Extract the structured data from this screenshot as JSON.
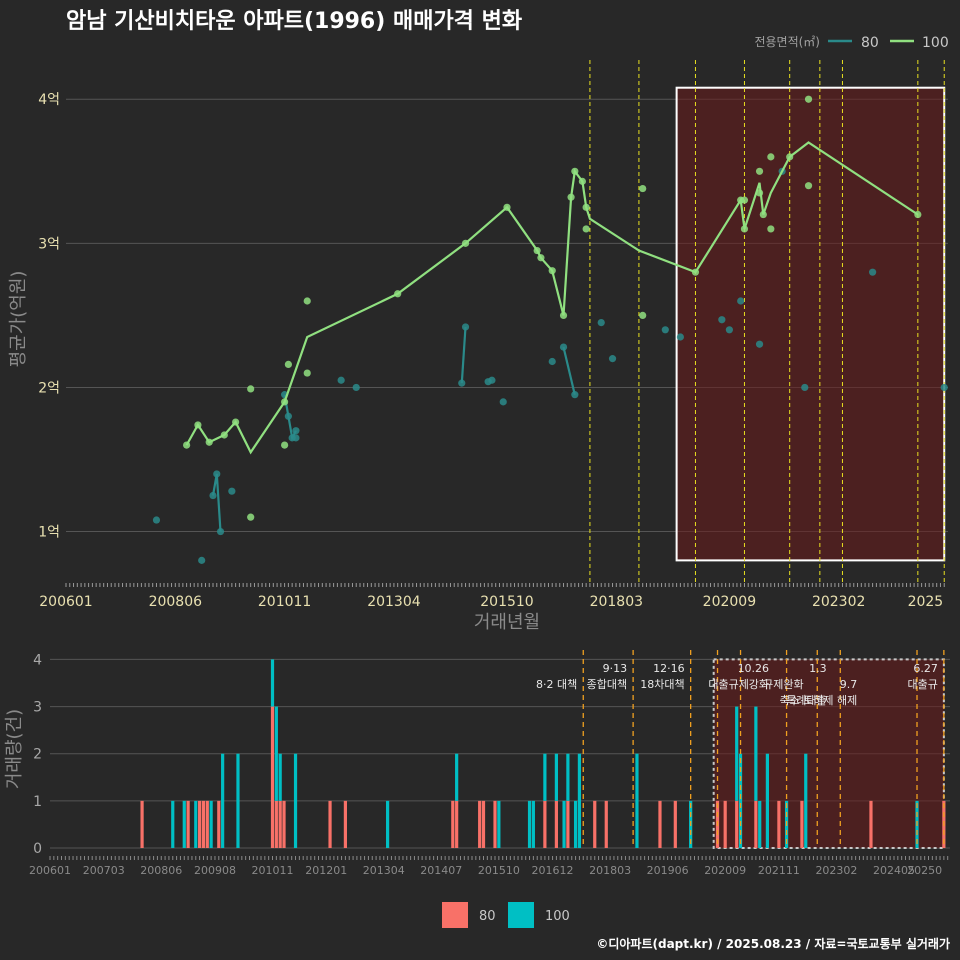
{
  "colors": {
    "background": "#282828",
    "grid": "#555555",
    "series_80": "#2a8a8a",
    "series_100": "#90e080",
    "bar_80": "#f87168",
    "bar_100": "#00bfc4",
    "policy_line_top": "#e8e020",
    "policy_line_bottom": "#f0a020",
    "highlight_fill": "#6a1a1a",
    "highlight_border": "#ffffff"
  },
  "chart_data": [
    {
      "type": "line",
      "title": "암남 기산비치타운 아파트(1996) 매매가격 변화",
      "xlabel": "거래년월",
      "ylabel": "평균가(억원)",
      "legend_title": "전용면적(㎡)",
      "legend_position": "top-right",
      "ylim": [
        0.65,
        4.3
      ],
      "xlim": [
        "2006-01",
        "2025-06"
      ],
      "x_ticks": [
        "200601",
        "200806",
        "201011",
        "201304",
        "201510",
        "201803",
        "202009",
        "202302",
        "2025"
      ],
      "y_ticks": [
        {
          "value": 1,
          "label": "1억"
        },
        {
          "value": 2,
          "label": "2억"
        },
        {
          "value": 3,
          "label": "3억"
        },
        {
          "value": 4,
          "label": "4억"
        }
      ],
      "grid": true,
      "highlight_range": [
        "2019-07",
        "2025-06"
      ],
      "policy_lines": [
        "2017-08",
        "2018-09",
        "2019-12",
        "2021-01",
        "2022-01",
        "2022-09",
        "2023-03",
        "2024-11",
        "2025-06"
      ],
      "series": [
        {
          "name": "80",
          "line_segments": [
            [
              [
                "2009-04",
                1.25
              ],
              [
                "2009-05",
                1.4
              ],
              [
                "2009-06",
                1.0
              ]
            ],
            [
              [
                "2010-11",
                1.95
              ],
              [
                "2010-12",
                1.8
              ],
              [
                "2011-01",
                1.65
              ],
              [
                "2011-02",
                1.7
              ]
            ],
            [
              [
                "2014-10",
                2.03
              ],
              [
                "2014-11",
                2.42
              ]
            ],
            [
              [
                "2017-01",
                2.28
              ],
              [
                "2017-04",
                1.95
              ]
            ]
          ],
          "points": [
            [
              "2008-01",
              1.08
            ],
            [
              "2009-01",
              0.8
            ],
            [
              "2009-04",
              1.25
            ],
            [
              "2009-05",
              1.4
            ],
            [
              "2009-06",
              1.0
            ],
            [
              "2009-09",
              1.28
            ],
            [
              "2010-11",
              1.95
            ],
            [
              "2010-12",
              1.8
            ],
            [
              "2011-01",
              1.65
            ],
            [
              "2011-02",
              1.7
            ],
            [
              "2011-02",
              1.65
            ],
            [
              "2012-02",
              2.05
            ],
            [
              "2012-06",
              2.0
            ],
            [
              "2014-10",
              2.03
            ],
            [
              "2014-11",
              2.42
            ],
            [
              "2015-05",
              2.04
            ],
            [
              "2015-06",
              2.05
            ],
            [
              "2015-09",
              1.9
            ],
            [
              "2016-10",
              2.18
            ],
            [
              "2017-01",
              2.28
            ],
            [
              "2017-04",
              1.95
            ],
            [
              "2017-11",
              2.45
            ],
            [
              "2018-02",
              2.2
            ],
            [
              "2019-04",
              2.4
            ],
            [
              "2019-08",
              2.35
            ],
            [
              "2020-07",
              2.47
            ],
            [
              "2020-09",
              2.4
            ],
            [
              "2020-12",
              2.6
            ],
            [
              "2021-05",
              2.3
            ],
            [
              "2021-11",
              3.5
            ],
            [
              "2022-05",
              2.0
            ],
            [
              "2023-11",
              2.8
            ],
            [
              "2025-06",
              2.0
            ]
          ]
        },
        {
          "name": "100",
          "line_segments": [
            [
              [
                "2008-09",
                1.6
              ],
              [
                "2008-12",
                1.74
              ],
              [
                "2009-03",
                1.62
              ],
              [
                "2009-07",
                1.67
              ],
              [
                "2009-10",
                1.76
              ],
              [
                "2010-02",
                1.55
              ],
              [
                "2010-11",
                1.9
              ],
              [
                "2011-05",
                2.35
              ],
              [
                "2013-05",
                2.65
              ],
              [
                "2014-11",
                3.0
              ],
              [
                "2015-10",
                3.25
              ],
              [
                "2016-06",
                2.95
              ],
              [
                "2016-07",
                2.9
              ],
              [
                "2016-10",
                2.81
              ],
              [
                "2017-01",
                2.5
              ],
              [
                "2017-03",
                3.32
              ],
              [
                "2017-04",
                3.5
              ],
              [
                "2017-06",
                3.43
              ],
              [
                "2017-07",
                3.25
              ],
              [
                "2017-08",
                3.17
              ],
              [
                "2018-09",
                2.95
              ],
              [
                "2019-12",
                2.8
              ],
              [
                "2020-12",
                3.3
              ],
              [
                "2021-01",
                3.1
              ],
              [
                "2021-05",
                3.42
              ],
              [
                "2021-06",
                3.2
              ],
              [
                "2021-08",
                3.35
              ],
              [
                "2022-01",
                3.6
              ],
              [
                "2022-06",
                3.7
              ],
              [
                "2024-11",
                3.2
              ]
            ]
          ],
          "points": [
            [
              "2008-09",
              1.6
            ],
            [
              "2008-12",
              1.74
            ],
            [
              "2009-03",
              1.62
            ],
            [
              "2009-07",
              1.67
            ],
            [
              "2009-10",
              1.76
            ],
            [
              "2010-02",
              1.1
            ],
            [
              "2010-02",
              1.99
            ],
            [
              "2010-11",
              1.6
            ],
            [
              "2010-11",
              1.9
            ],
            [
              "2010-12",
              2.16
            ],
            [
              "2011-05",
              2.1
            ],
            [
              "2011-05",
              2.6
            ],
            [
              "2013-05",
              2.65
            ],
            [
              "2014-11",
              3.0
            ],
            [
              "2015-10",
              3.25
            ],
            [
              "2016-06",
              2.95
            ],
            [
              "2016-07",
              2.9
            ],
            [
              "2016-10",
              2.81
            ],
            [
              "2017-01",
              2.5
            ],
            [
              "2017-03",
              3.32
            ],
            [
              "2017-04",
              3.5
            ],
            [
              "2017-06",
              3.43
            ],
            [
              "2017-07",
              3.25
            ],
            [
              "2017-07",
              3.1
            ],
            [
              "2018-10",
              3.38
            ],
            [
              "2018-10",
              2.5
            ],
            [
              "2019-12",
              2.8
            ],
            [
              "2020-12",
              3.3
            ],
            [
              "2021-01",
              3.3
            ],
            [
              "2021-01",
              3.1
            ],
            [
              "2021-05",
              3.5
            ],
            [
              "2021-05",
              3.35
            ],
            [
              "2021-06",
              3.2
            ],
            [
              "2021-08",
              3.1
            ],
            [
              "2021-08",
              3.6
            ],
            [
              "2022-01",
              3.6
            ],
            [
              "2022-06",
              4.0
            ],
            [
              "2022-06",
              3.4
            ],
            [
              "2024-11",
              3.2
            ]
          ]
        }
      ]
    },
    {
      "type": "bar",
      "xlabel": "",
      "ylabel": "거래량(건)",
      "legend_position": "bottom",
      "legend_entries": [
        "80",
        "100"
      ],
      "ylim": [
        0,
        4.2
      ],
      "y_ticks": [
        0,
        1,
        2,
        3,
        4
      ],
      "x_ticks": [
        "200601",
        "200703",
        "200806",
        "200908",
        "201011",
        "201201",
        "201304",
        "201407",
        "201510",
        "201612",
        "201803",
        "201906",
        "202009",
        "202111",
        "202302",
        "202405",
        "20250"
      ],
      "highlight_range": [
        "2020-06",
        "2025-06"
      ],
      "events": [
        {
          "date": "2017-08",
          "label": "8·2 대책",
          "row": 1
        },
        {
          "date": "2018-09",
          "label": "9·13",
          "row": 0
        },
        {
          "date": "2018-09",
          "label": "종합대책",
          "row": 1
        },
        {
          "date": "2019-12",
          "label": "12·16",
          "row": 0
        },
        {
          "date": "2019-12",
          "label": "18차대책",
          "row": 1
        },
        {
          "date": "2021-10",
          "label": "10.26",
          "row": 0
        },
        {
          "date": "2021-10",
          "label": "대출규제강화",
          "row": 1
        },
        {
          "date": "2023-01",
          "label": "1.3",
          "row": 0
        },
        {
          "date": "2022-07",
          "label": "규제완화",
          "row": 1
        },
        {
          "date": "2023-01",
          "label": "특례대출",
          "row": 2
        },
        {
          "date": "2023-09",
          "label": "9.7",
          "row": 1
        },
        {
          "date": "2023-09",
          "label": "축소 토허제 해제",
          "row": 2
        },
        {
          "date": "2025-06",
          "label": "6.27",
          "row": 0
        },
        {
          "date": "2025-06",
          "label": "대출규",
          "row": 1
        }
      ],
      "policy_lines": [
        "2017-08",
        "2018-09",
        "2019-12",
        "2020-07",
        "2021-01",
        "2022-01",
        "2022-09",
        "2023-03",
        "2024-11",
        "2025-06"
      ],
      "series": [
        {
          "name": "80",
          "bars": [
            [
              "2008-01",
              1
            ],
            [
              "2009-01",
              1
            ],
            [
              "2009-04",
              1
            ],
            [
              "2009-05",
              1
            ],
            [
              "2009-06",
              1
            ],
            [
              "2009-09",
              1
            ],
            [
              "2010-11",
              3
            ],
            [
              "2010-12",
              1
            ],
            [
              "2011-01",
              1
            ],
            [
              "2011-02",
              1
            ],
            [
              "2012-02",
              1
            ],
            [
              "2012-06",
              1
            ],
            [
              "2014-10",
              1
            ],
            [
              "2014-11",
              1
            ],
            [
              "2015-05",
              1
            ],
            [
              "2015-06",
              1
            ],
            [
              "2015-09",
              1
            ],
            [
              "2016-10",
              1
            ],
            [
              "2017-01",
              1
            ],
            [
              "2017-04",
              1
            ],
            [
              "2017-11",
              1
            ],
            [
              "2018-02",
              1
            ],
            [
              "2019-04",
              1
            ],
            [
              "2019-08",
              1
            ],
            [
              "2020-07",
              1
            ],
            [
              "2020-09",
              1
            ],
            [
              "2020-12",
              1
            ],
            [
              "2021-05",
              1
            ],
            [
              "2021-11",
              1
            ],
            [
              "2022-05",
              1
            ],
            [
              "2023-11",
              1
            ],
            [
              "2025-06",
              1
            ]
          ]
        },
        {
          "name": "100",
          "bars": [
            [
              "2008-09",
              1
            ],
            [
              "2008-12",
              1
            ],
            [
              "2009-03",
              1
            ],
            [
              "2009-07",
              1
            ],
            [
              "2009-10",
              2
            ],
            [
              "2010-02",
              2
            ],
            [
              "2010-11",
              1
            ],
            [
              "2010-12",
              2
            ],
            [
              "2011-01",
              1
            ],
            [
              "2011-05",
              2
            ],
            [
              "2013-05",
              1
            ],
            [
              "2014-11",
              1
            ],
            [
              "2015-10",
              1
            ],
            [
              "2016-06",
              1
            ],
            [
              "2016-07",
              1
            ],
            [
              "2016-10",
              1
            ],
            [
              "2017-01",
              1
            ],
            [
              "2017-03",
              1
            ],
            [
              "2017-04",
              1
            ],
            [
              "2017-06",
              1
            ],
            [
              "2017-07",
              2
            ],
            [
              "2018-10",
              2
            ],
            [
              "2019-12",
              1
            ],
            [
              "2020-12",
              2
            ],
            [
              "2021-01",
              2
            ],
            [
              "2021-05",
              2
            ],
            [
              "2021-06",
              1
            ],
            [
              "2021-08",
              2
            ],
            [
              "2022-01",
              1
            ],
            [
              "2022-06",
              2
            ],
            [
              "2024-11",
              1
            ]
          ]
        }
      ]
    }
  ],
  "footer": {
    "caption": "©디아파트(dapt.kr) / 2025.08.23 / 자료=국토교통부 실거래가"
  }
}
